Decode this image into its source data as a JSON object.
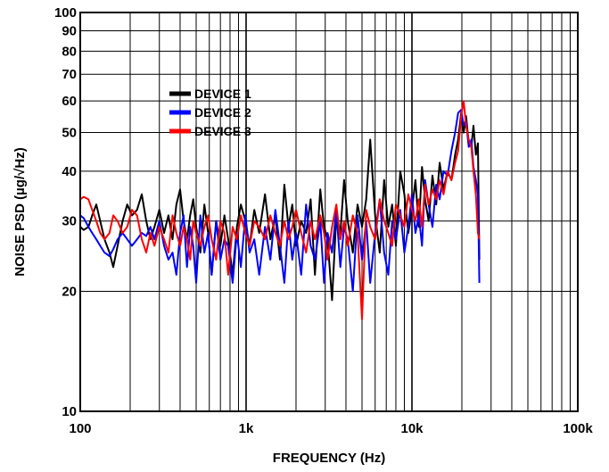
{
  "chart_data": {
    "type": "line",
    "title": "",
    "xlabel": "FREQUENCY (Hz)",
    "ylabel": "NOISE PSD (µg/√Hz)",
    "x_scale": "log",
    "y_scale": "log",
    "xlim": [
      100,
      100000
    ],
    "ylim": [
      10,
      100
    ],
    "grid": true,
    "legend_position": "top-left",
    "x_ticks": [
      {
        "value": 100,
        "label": "100"
      },
      {
        "value": 1000,
        "label": "1k"
      },
      {
        "value": 10000,
        "label": "10k"
      },
      {
        "value": 100000,
        "label": "100k"
      }
    ],
    "y_ticks": [
      {
        "value": 10,
        "label": "10"
      },
      {
        "value": 20,
        "label": "20"
      },
      {
        "value": 30,
        "label": "30"
      },
      {
        "value": 40,
        "label": "40"
      },
      {
        "value": 50,
        "label": "50"
      },
      {
        "value": 60,
        "label": "60"
      },
      {
        "value": 70,
        "label": "70"
      },
      {
        "value": 80,
        "label": "80"
      },
      {
        "value": 90,
        "label": "90"
      },
      {
        "value": 100,
        "label": "100"
      }
    ],
    "series": [
      {
        "name": "DEVICE 1",
        "color": "#000000",
        "x": [
          100,
          105,
          112,
          118,
          125,
          132,
          140,
          150,
          158,
          168,
          180,
          192,
          205,
          220,
          235,
          250,
          265,
          280,
          300,
          320,
          340,
          360,
          380,
          400,
          420,
          440,
          460,
          480,
          500,
          530,
          560,
          590,
          620,
          660,
          700,
          740,
          780,
          830,
          880,
          930,
          990,
          1050,
          1120,
          1200,
          1300,
          1400,
          1500,
          1600,
          1700,
          1800,
          1900,
          2000,
          2150,
          2300,
          2450,
          2600,
          2800,
          2950,
          3100,
          3300,
          3500,
          3700,
          3900,
          4100,
          4400,
          4700,
          5000,
          5300,
          5600,
          6000,
          6400,
          6800,
          7200,
          7600,
          8000,
          8500,
          9000,
          9500,
          10000,
          10500,
          11000,
          11500,
          12000,
          12600,
          13300,
          14000,
          14700,
          15500,
          16400,
          17300,
          18200,
          19000,
          19800,
          20500,
          21200,
          22000,
          22800,
          23500,
          24300,
          25000,
          25500
        ],
        "y": [
          29,
          28.5,
          29,
          31,
          33,
          30,
          27,
          25,
          23,
          26,
          30,
          33,
          31,
          32,
          35,
          30,
          27,
          29,
          32,
          28,
          31,
          27,
          33,
          36,
          30,
          27,
          31,
          34,
          29,
          25,
          33,
          28,
          22,
          30,
          26,
          31,
          27,
          22,
          29,
          33,
          30,
          26,
          32,
          28,
          35,
          27,
          31,
          24,
          37,
          29,
          33,
          26,
          30,
          28,
          34,
          22,
          36,
          29,
          27,
          19,
          31,
          28,
          38,
          30,
          25,
          33,
          29,
          34,
          48,
          31,
          25,
          38,
          29,
          33,
          26,
          40,
          35,
          28,
          32,
          38,
          29,
          41,
          34,
          30,
          39,
          33,
          42,
          36,
          40,
          38,
          44,
          48,
          56,
          50,
          55,
          47,
          46,
          52,
          44,
          47,
          24
        ]
      },
      {
        "name": "DEVICE 2",
        "color": "#0000ff",
        "x": [
          100,
          105,
          112,
          118,
          125,
          132,
          140,
          150,
          158,
          168,
          180,
          192,
          205,
          220,
          235,
          250,
          265,
          280,
          300,
          320,
          340,
          360,
          380,
          400,
          420,
          440,
          460,
          480,
          500,
          530,
          560,
          590,
          620,
          660,
          700,
          740,
          780,
          830,
          880,
          930,
          990,
          1050,
          1120,
          1200,
          1300,
          1400,
          1500,
          1600,
          1700,
          1800,
          1900,
          2000,
          2150,
          2300,
          2450,
          2600,
          2800,
          2950,
          3100,
          3300,
          3500,
          3700,
          3900,
          4100,
          4400,
          4700,
          5000,
          5300,
          5600,
          6000,
          6400,
          6800,
          7200,
          7600,
          8000,
          8500,
          9000,
          9500,
          10000,
          10500,
          11000,
          11500,
          12000,
          12600,
          13300,
          14000,
          14700,
          15500,
          16400,
          17300,
          18200,
          19000,
          19800,
          20500,
          21200,
          22000,
          22800,
          23500,
          24300,
          25000,
          25500
        ],
        "y": [
          31,
          30.5,
          29,
          28,
          27,
          26,
          25,
          24.5,
          25.5,
          27,
          28,
          27,
          26,
          27,
          28,
          27.5,
          29,
          27,
          30,
          26,
          24,
          25,
          22,
          28,
          31,
          23,
          29,
          26,
          21,
          31,
          25,
          28,
          22,
          30,
          24,
          27,
          26,
          21,
          28,
          23,
          31,
          25,
          27,
          22,
          29,
          24,
          32,
          26,
          21,
          30,
          24,
          28,
          22,
          33,
          26,
          24,
          30,
          21,
          28,
          25,
          32,
          23,
          29,
          27,
          20,
          31,
          24,
          30,
          21,
          28,
          34,
          25,
          22,
          30,
          27,
          32,
          25,
          29,
          35,
          28,
          31,
          26,
          38,
          33,
          29,
          37,
          34,
          40,
          39,
          45,
          50,
          56,
          57,
          52,
          53,
          46,
          48,
          41,
          38,
          35,
          21
        ]
      },
      {
        "name": "DEVICE 3",
        "color": "#ff0000",
        "x": [
          100,
          105,
          112,
          118,
          125,
          132,
          140,
          150,
          158,
          168,
          180,
          192,
          205,
          220,
          235,
          250,
          265,
          280,
          300,
          320,
          340,
          360,
          380,
          400,
          420,
          440,
          460,
          480,
          500,
          530,
          560,
          590,
          620,
          660,
          700,
          740,
          780,
          830,
          880,
          930,
          990,
          1050,
          1120,
          1200,
          1300,
          1400,
          1500,
          1600,
          1700,
          1800,
          1900,
          2000,
          2150,
          2300,
          2450,
          2600,
          2800,
          2950,
          3100,
          3300,
          3500,
          3700,
          3900,
          4100,
          4400,
          4700,
          5000,
          5300,
          5600,
          6000,
          6400,
          6800,
          7200,
          7600,
          8000,
          8500,
          9000,
          9500,
          10000,
          10500,
          11000,
          11500,
          12000,
          12600,
          13300,
          14000,
          14700,
          15500,
          16400,
          17300,
          18200,
          19000,
          19800,
          20500,
          21200,
          22000,
          22800,
          23500,
          24300,
          25000,
          25500
        ],
        "y": [
          34,
          34.5,
          34,
          32,
          30,
          28,
          27,
          28,
          31,
          30,
          28,
          29,
          32,
          31,
          27,
          25,
          28,
          26,
          29,
          27,
          25,
          31,
          28,
          26,
          29,
          27,
          24,
          30,
          28,
          26,
          29,
          31,
          27,
          24,
          30,
          28,
          22,
          29,
          27,
          31,
          28,
          26,
          30,
          29,
          27,
          31,
          28,
          26,
          30,
          27,
          29,
          32,
          28,
          25,
          30,
          27,
          31,
          28,
          24,
          29,
          33,
          27,
          30,
          26,
          31,
          28,
          17,
          32,
          29,
          27,
          34,
          30,
          28,
          26,
          33,
          31,
          29,
          35,
          32,
          30,
          34,
          29,
          37,
          33,
          36,
          34,
          38,
          35,
          40,
          38,
          42,
          45,
          55,
          60,
          52,
          48,
          46,
          40,
          35,
          28,
          27
        ]
      }
    ]
  }
}
